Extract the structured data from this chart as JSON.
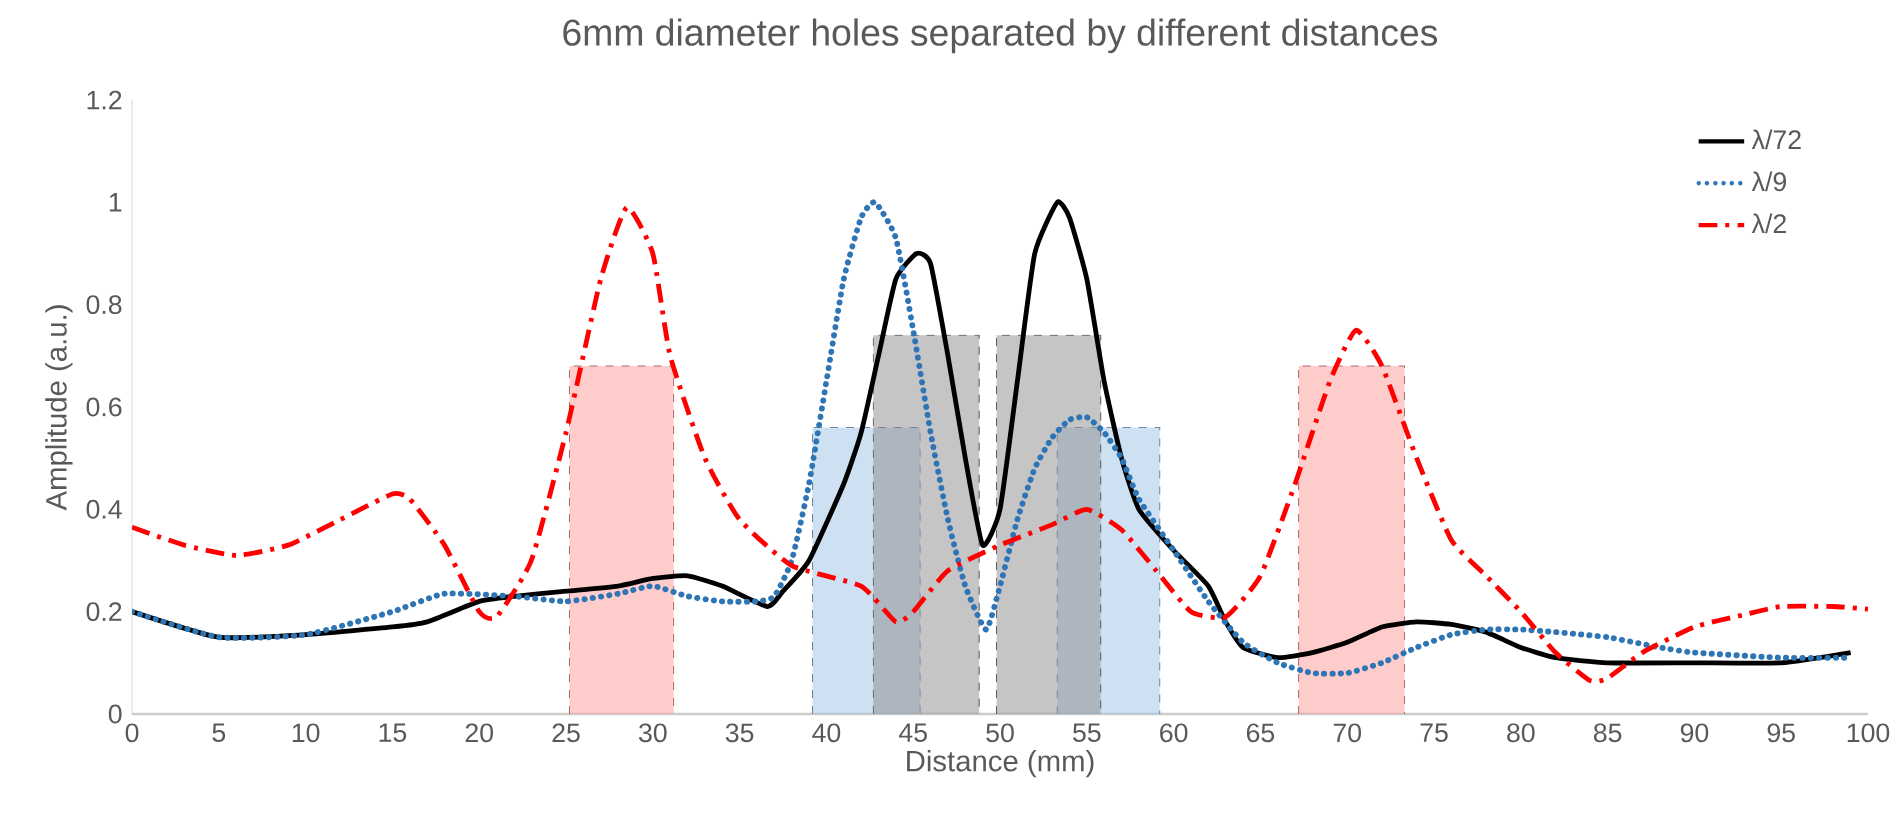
{
  "chart_data": {
    "type": "line",
    "title": "6mm diameter holes separated by different distances",
    "xlabel": "Distance (mm)",
    "ylabel": "Amplitude (a.u.)",
    "xlim": [
      0,
      100
    ],
    "xticks": [
      0,
      5,
      10,
      15,
      20,
      25,
      30,
      35,
      40,
      45,
      50,
      55,
      60,
      65,
      70,
      75,
      80,
      85,
      90,
      95,
      100
    ],
    "ylim": [
      0,
      1.2
    ],
    "yticks": [
      0,
      0.2,
      0.4,
      0.6,
      0.8,
      1,
      1.2
    ],
    "grid": false,
    "legend": "top right",
    "marker": "none",
    "series": [
      {
        "type": "area",
        "color": "#ff9999",
        "line_style": "dashed",
        "x": [
          25.2,
          25.2,
          31.2,
          31.2
        ],
        "values": [
          0,
          0.68,
          0.68,
          0
        ]
      },
      {
        "type": "area",
        "color": "#ff9999",
        "line_style": "dashed",
        "x": [
          67.2,
          67.2,
          73.3,
          73.3
        ],
        "values": [
          0,
          0.68,
          0.68,
          0
        ]
      },
      {
        "type": "area",
        "color": "#9dc3e6",
        "line_style": "dashed",
        "x": [
          39.2,
          39.2,
          45.4,
          45.4
        ],
        "values": [
          0,
          0.56,
          0.56,
          0
        ]
      },
      {
        "type": "area",
        "color": "#9dc3e6",
        "line_style": "dashed",
        "x": [
          53.3,
          53.3,
          59.2,
          59.2
        ],
        "values": [
          0,
          0.56,
          0.56,
          0
        ]
      },
      {
        "type": "area",
        "color": "#8c8c8c",
        "line_style": "dashed",
        "x": [
          42.7,
          42.7,
          48.8,
          48.8
        ],
        "values": [
          0,
          0.74,
          0.74,
          0
        ]
      },
      {
        "type": "area",
        "color": "#8c8c8c",
        "line_style": "dashed",
        "x": [
          49.8,
          49.8,
          55.8,
          55.8
        ],
        "values": [
          0,
          0.74,
          0.74,
          0
        ]
      },
      {
        "name": "λ/72",
        "color": "#000000",
        "line_style": "solid",
        "x": [
          0,
          5,
          10,
          15,
          17,
          20,
          22,
          25,
          28,
          30,
          32,
          34,
          36.6,
          37.5,
          39,
          41,
          42,
          43,
          44,
          45.2,
          46,
          47,
          48,
          49,
          50,
          51,
          52,
          53.3,
          54,
          55,
          56,
          57,
          58,
          60,
          62,
          63,
          64,
          66,
          68,
          70,
          72,
          74,
          76,
          78,
          80,
          82,
          85,
          90,
          95,
          99
        ],
        "values": [
          0.2,
          0.15,
          0.155,
          0.17,
          0.18,
          0.22,
          0.23,
          0.24,
          0.25,
          0.265,
          0.27,
          0.25,
          0.21,
          0.24,
          0.3,
          0.45,
          0.55,
          0.7,
          0.85,
          0.9,
          0.88,
          0.7,
          0.5,
          0.33,
          0.4,
          0.65,
          0.9,
          1.0,
          0.97,
          0.85,
          0.65,
          0.5,
          0.4,
          0.32,
          0.25,
          0.18,
          0.13,
          0.11,
          0.12,
          0.14,
          0.17,
          0.18,
          0.175,
          0.16,
          0.13,
          0.11,
          0.1,
          0.1,
          0.1,
          0.12
        ]
      },
      {
        "name": "λ/9",
        "color": "#2e75b6",
        "line_style": "dotted",
        "x": [
          0,
          5,
          10,
          15,
          18,
          22,
          25,
          28,
          30,
          32,
          34,
          36,
          37,
          38,
          39,
          40,
          41,
          42,
          42.8,
          44,
          45,
          46,
          47,
          48,
          49.2,
          50,
          51,
          52,
          53,
          54,
          55,
          56,
          57,
          58,
          60,
          62,
          64,
          66,
          68,
          70,
          72,
          74,
          76,
          78,
          80,
          82,
          85,
          88,
          90,
          95,
          99
        ],
        "values": [
          0.2,
          0.15,
          0.155,
          0.2,
          0.235,
          0.23,
          0.22,
          0.235,
          0.25,
          0.23,
          0.22,
          0.22,
          0.23,
          0.3,
          0.45,
          0.65,
          0.85,
          0.97,
          1.0,
          0.93,
          0.75,
          0.55,
          0.38,
          0.25,
          0.165,
          0.25,
          0.38,
          0.48,
          0.54,
          0.575,
          0.58,
          0.55,
          0.5,
          0.42,
          0.32,
          0.22,
          0.14,
          0.1,
          0.08,
          0.08,
          0.1,
          0.13,
          0.155,
          0.165,
          0.165,
          0.16,
          0.15,
          0.13,
          0.12,
          0.11,
          0.11
        ]
      },
      {
        "name": "λ/2",
        "color": "#ff0000",
        "line_style": "dashdot",
        "x": [
          0,
          3,
          6,
          9,
          12,
          15,
          16,
          18,
          20,
          21,
          23,
          25,
          27,
          28.5,
          30,
          31,
          33,
          35,
          38,
          42,
          44,
          45,
          47,
          50,
          53,
          55,
          57,
          59,
          61,
          63,
          65,
          67,
          69,
          70.5,
          72,
          74,
          76,
          78,
          80,
          82,
          84,
          85,
          87,
          90,
          93,
          95,
          98,
          100
        ],
        "values": [
          0.365,
          0.33,
          0.31,
          0.33,
          0.38,
          0.43,
          0.42,
          0.33,
          0.2,
          0.19,
          0.3,
          0.55,
          0.85,
          0.99,
          0.9,
          0.7,
          0.5,
          0.38,
          0.29,
          0.25,
          0.18,
          0.2,
          0.28,
          0.33,
          0.37,
          0.4,
          0.36,
          0.28,
          0.2,
          0.19,
          0.27,
          0.45,
          0.65,
          0.75,
          0.68,
          0.5,
          0.34,
          0.27,
          0.2,
          0.12,
          0.065,
          0.07,
          0.12,
          0.17,
          0.195,
          0.21,
          0.21,
          0.205
        ]
      }
    ]
  }
}
